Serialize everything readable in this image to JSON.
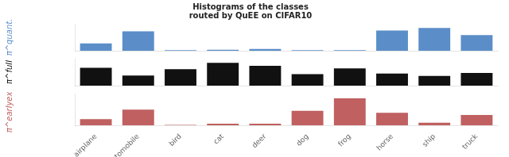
{
  "chart_data": [
    {
      "type": "bar",
      "title": "Histograms of the classes\nrouted by QuEE on CIFAR10",
      "categories": [
        "airplane",
        "automobile",
        "bird",
        "cat",
        "deer",
        "dog",
        "frog",
        "horse",
        "ship",
        "truck"
      ],
      "series": [
        {
          "name": "π^quant.",
          "color": "#5b8ec9",
          "values": [
            0.28,
            0.75,
            0.02,
            0.04,
            0.07,
            0.02,
            0.02,
            0.78,
            0.88,
            0.6
          ]
        }
      ],
      "ylim": [
        0,
        1.0384
      ],
      "tick_labels": false,
      "grid": false
    },
    {
      "type": "bar",
      "categories": [
        "airplane",
        "automobile",
        "bird",
        "cat",
        "deer",
        "dog",
        "frog",
        "horse",
        "ship",
        "truck"
      ],
      "series": [
        {
          "name": "π^full",
          "color": "#111111",
          "values": [
            0.7,
            0.4,
            0.65,
            0.9,
            0.78,
            0.45,
            0.68,
            0.48,
            0.38,
            0.5
          ]
        }
      ],
      "ylim": [
        0,
        1.062
      ],
      "tick_labels": false,
      "grid": false
    },
    {
      "type": "bar",
      "categories": [
        "airplane",
        "automobile",
        "bird",
        "cat",
        "deer",
        "dog",
        "frog",
        "horse",
        "ship",
        "truck"
      ],
      "series": [
        {
          "name": "π^earlyexit",
          "color": "#c06060",
          "values": [
            0.15,
            0.38,
            0.01,
            0.04,
            0.04,
            0.35,
            0.65,
            0.3,
            0.06,
            0.25
          ]
        }
      ],
      "ylim": [
        0,
        0.767
      ],
      "tick_labels": "x",
      "grid": false
    }
  ]
}
